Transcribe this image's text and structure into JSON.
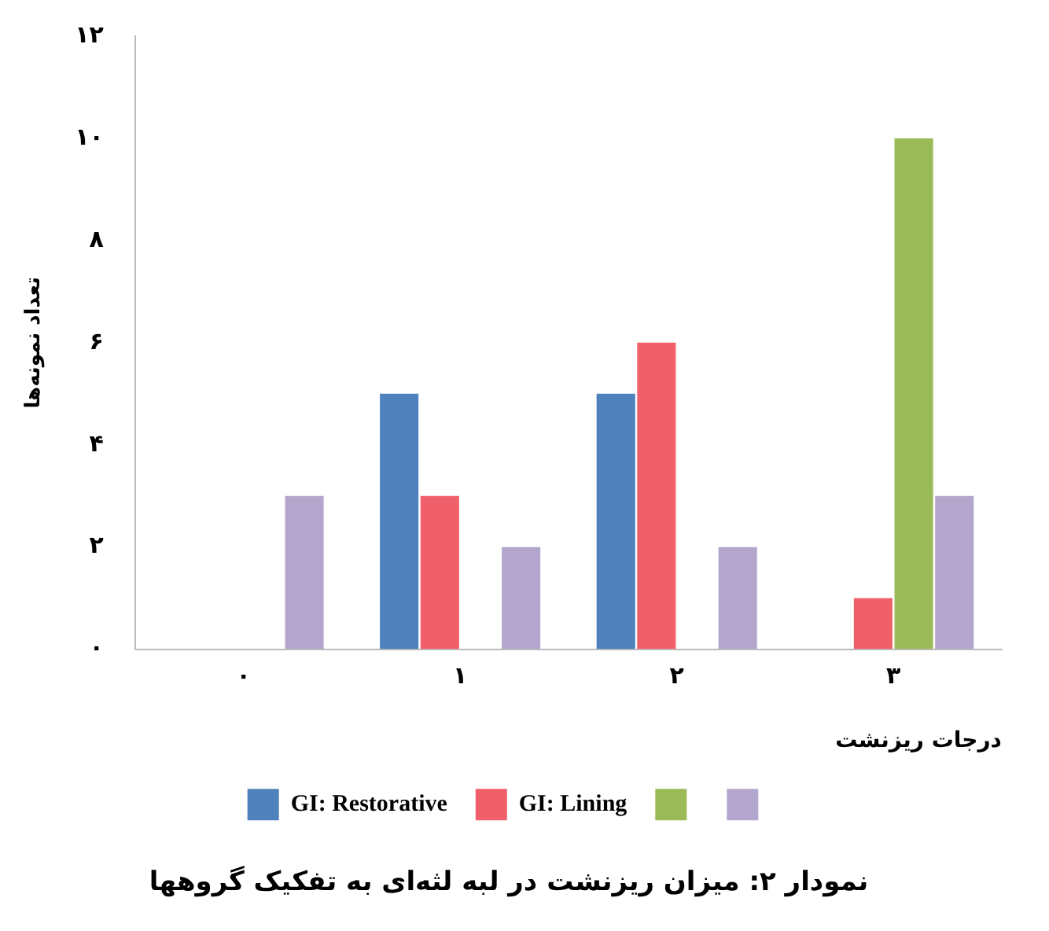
{
  "chart_data": {
    "type": "bar",
    "title": "نمودار ۲: میزان ریزنشت در لبه لثه‌ای به تفکیک گروهها",
    "xlabel": "درجات ریزنشت",
    "ylabel": "تعداد نمونه‌ها",
    "categories": [
      "۰",
      "۱",
      "۲",
      "۳"
    ],
    "series": [
      {
        "name": "GI: Restorative",
        "color": "#4f81bd",
        "values": [
          0,
          5,
          5,
          0
        ]
      },
      {
        "name": "GI: Lining",
        "color": "#f0606a",
        "values": [
          0,
          3,
          6,
          1
        ]
      },
      {
        "color": "#9bbb59",
        "values": [
          0,
          0,
          0,
          10
        ]
      },
      {
        "color": "#b3a6cc",
        "values": [
          3,
          2,
          2,
          3
        ]
      }
    ],
    "ylim": [
      0,
      12
    ],
    "yticks": [
      {
        "value": 0,
        "label": "۰"
      },
      {
        "value": 2,
        "label": "۲"
      },
      {
        "value": 4,
        "label": "۴"
      },
      {
        "value": 6,
        "label": "۶"
      },
      {
        "value": 8,
        "label": "۸"
      },
      {
        "value": 10,
        "label": "۱۰"
      },
      {
        "value": 12,
        "label": "۱۲"
      }
    ],
    "grid": false,
    "legend": "bottom"
  }
}
